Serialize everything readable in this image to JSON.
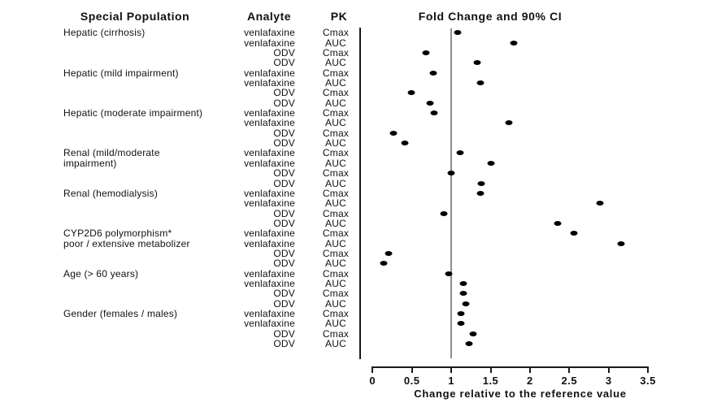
{
  "figure": {
    "columns": {
      "population": "Special Population",
      "analyte": "Analyte",
      "pk": "PK"
    },
    "plot_title": "Fold Change and 90% CI",
    "axis_label": "Change relative to the reference value"
  },
  "colors": {
    "text": "#111111",
    "dot": "#000000",
    "axis": "#1a1a1a",
    "reference_line": "#8c8c8c",
    "background": "#ffffff"
  },
  "chart_data": {
    "type": "scatter",
    "title": "Fold Change and 90% CI",
    "xlabel": "Change relative to the reference value",
    "xlim": [
      0,
      3.5
    ],
    "x_ticks": [
      0,
      0.5,
      1,
      1.5,
      2,
      2.5,
      3,
      3.5
    ],
    "x_tick_labels": [
      "0",
      "0.5",
      "1",
      "1.5",
      "2",
      "2.5",
      "3",
      "3.5"
    ],
    "reference_line_x": 1,
    "grid": false,
    "legend_position": "none",
    "rows": [
      {
        "population": "Hepatic (cirrhosis)",
        "analyte": "venlafaxine",
        "pk": "Cmax",
        "fold_change": 1.08
      },
      {
        "population": "",
        "analyte": "venlafaxine",
        "pk": "AUC",
        "fold_change": 1.79
      },
      {
        "population": "",
        "analyte": "ODV",
        "pk": "Cmax",
        "fold_change": 0.68
      },
      {
        "population": "",
        "analyte": "ODV",
        "pk": "AUC",
        "fold_change": 1.33
      },
      {
        "population": "Hepatic (mild impairment)",
        "analyte": "venlafaxine",
        "pk": "Cmax",
        "fold_change": 0.77
      },
      {
        "population": "",
        "analyte": "venlafaxine",
        "pk": "AUC",
        "fold_change": 1.37
      },
      {
        "population": "",
        "analyte": "ODV",
        "pk": "Cmax",
        "fold_change": 0.49
      },
      {
        "population": "",
        "analyte": "ODV",
        "pk": "AUC",
        "fold_change": 0.73
      },
      {
        "population": "Hepatic (moderate impairment)",
        "analyte": "venlafaxine",
        "pk": "Cmax",
        "fold_change": 0.78
      },
      {
        "population": "",
        "analyte": "venlafaxine",
        "pk": "AUC",
        "fold_change": 1.73
      },
      {
        "population": "",
        "analyte": "ODV",
        "pk": "Cmax",
        "fold_change": 0.27
      },
      {
        "population": "",
        "analyte": "ODV",
        "pk": "AUC",
        "fold_change": 0.41
      },
      {
        "population": "Renal (mild/moderate",
        "analyte": "venlafaxine",
        "pk": "Cmax",
        "fold_change": 1.11
      },
      {
        "population": "impairment)",
        "analyte": "venlafaxine",
        "pk": "AUC",
        "fold_change": 1.5
      },
      {
        "population": "",
        "analyte": "ODV",
        "pk": "Cmax",
        "fold_change": 1.0
      },
      {
        "population": "",
        "analyte": "ODV",
        "pk": "AUC",
        "fold_change": 1.38
      },
      {
        "population": "Renal (hemodialysis)",
        "analyte": "venlafaxine",
        "pk": "Cmax",
        "fold_change": 1.37
      },
      {
        "population": "",
        "analyte": "venlafaxine",
        "pk": "AUC",
        "fold_change": 2.89
      },
      {
        "population": "",
        "analyte": "ODV",
        "pk": "Cmax",
        "fold_change": 0.91
      },
      {
        "population": "",
        "analyte": "ODV",
        "pk": "AUC",
        "fold_change": 2.35
      },
      {
        "population": "CYP2D6 polymorphism*",
        "analyte": "venlafaxine",
        "pk": "Cmax",
        "fold_change": 2.56
      },
      {
        "population": "poor / extensive metabolizer",
        "analyte": "venlafaxine",
        "pk": "AUC",
        "fold_change": 3.16
      },
      {
        "population": "",
        "analyte": "ODV",
        "pk": "Cmax",
        "fold_change": 0.2
      },
      {
        "population": "",
        "analyte": "ODV",
        "pk": "AUC",
        "fold_change": 0.14
      },
      {
        "population": "Age (> 60 years)",
        "analyte": "venlafaxine",
        "pk": "Cmax",
        "fold_change": 0.97
      },
      {
        "population": "",
        "analyte": "venlafaxine",
        "pk": "AUC",
        "fold_change": 1.15
      },
      {
        "population": "",
        "analyte": "ODV",
        "pk": "Cmax",
        "fold_change": 1.15
      },
      {
        "population": "",
        "analyte": "ODV",
        "pk": "AUC",
        "fold_change": 1.19
      },
      {
        "population": "Gender (females / males)",
        "analyte": "venlafaxine",
        "pk": "Cmax",
        "fold_change": 1.12
      },
      {
        "population": "",
        "analyte": "venlafaxine",
        "pk": "AUC",
        "fold_change": 1.12
      },
      {
        "population": "",
        "analyte": "ODV",
        "pk": "Cmax",
        "fold_change": 1.28
      },
      {
        "population": "",
        "analyte": "ODV",
        "pk": "AUC",
        "fold_change": 1.23
      }
    ]
  }
}
